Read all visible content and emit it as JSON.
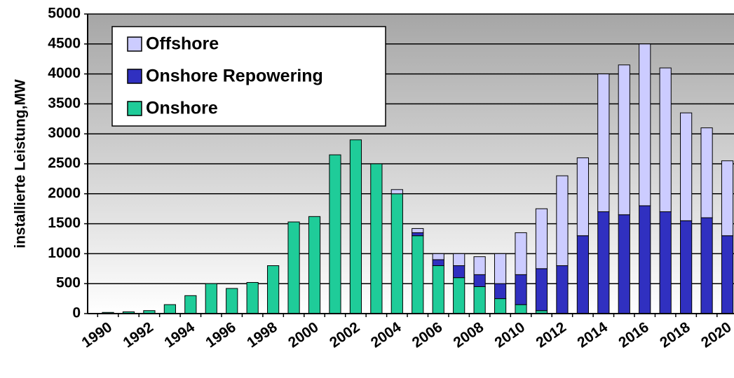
{
  "chart_data": {
    "type": "stacked-bar",
    "y_label": "installierte Leistung,MW",
    "categories": [
      "1990",
      null,
      "1992",
      null,
      "1994",
      null,
      "1996",
      null,
      "1998",
      null,
      "2000",
      null,
      "2002",
      null,
      "2004",
      null,
      "2006",
      null,
      "2008",
      null,
      "2010",
      null,
      "2012",
      null,
      "2014",
      null,
      "2016",
      null,
      "2018",
      null,
      "2020"
    ],
    "series": [
      {
        "name": "Onshore",
        "color": "#1fcc99",
        "values": [
          20,
          30,
          50,
          150,
          300,
          500,
          420,
          520,
          800,
          1530,
          1620,
          2650,
          2900,
          2500,
          2000,
          1300,
          800,
          600,
          450,
          250,
          150,
          50,
          0,
          0,
          0,
          0,
          0,
          0,
          0,
          0,
          0
        ]
      },
      {
        "name": "Onshore Repowering",
        "color": "#3030c0",
        "values": [
          0,
          0,
          0,
          0,
          0,
          0,
          0,
          0,
          0,
          0,
          0,
          0,
          0,
          0,
          0,
          50,
          100,
          200,
          200,
          250,
          500,
          700,
          800,
          1300,
          1700,
          1650,
          1800,
          1700,
          1550,
          1600,
          1300
        ]
      },
      {
        "name": "Offshore",
        "color": "#ccccff",
        "values": [
          0,
          0,
          0,
          0,
          0,
          0,
          0,
          0,
          0,
          0,
          0,
          0,
          0,
          0,
          70,
          70,
          100,
          200,
          300,
          500,
          700,
          1000,
          1500,
          1300,
          2300,
          2500,
          2700,
          2400,
          1800,
          1500,
          1250
        ]
      }
    ],
    "ylim": [
      0,
      5000
    ],
    "yticks": [
      0,
      500,
      1000,
      1500,
      2000,
      2500,
      3000,
      3500,
      4000,
      4500,
      5000
    ],
    "grid": true,
    "legend": "top-left"
  }
}
